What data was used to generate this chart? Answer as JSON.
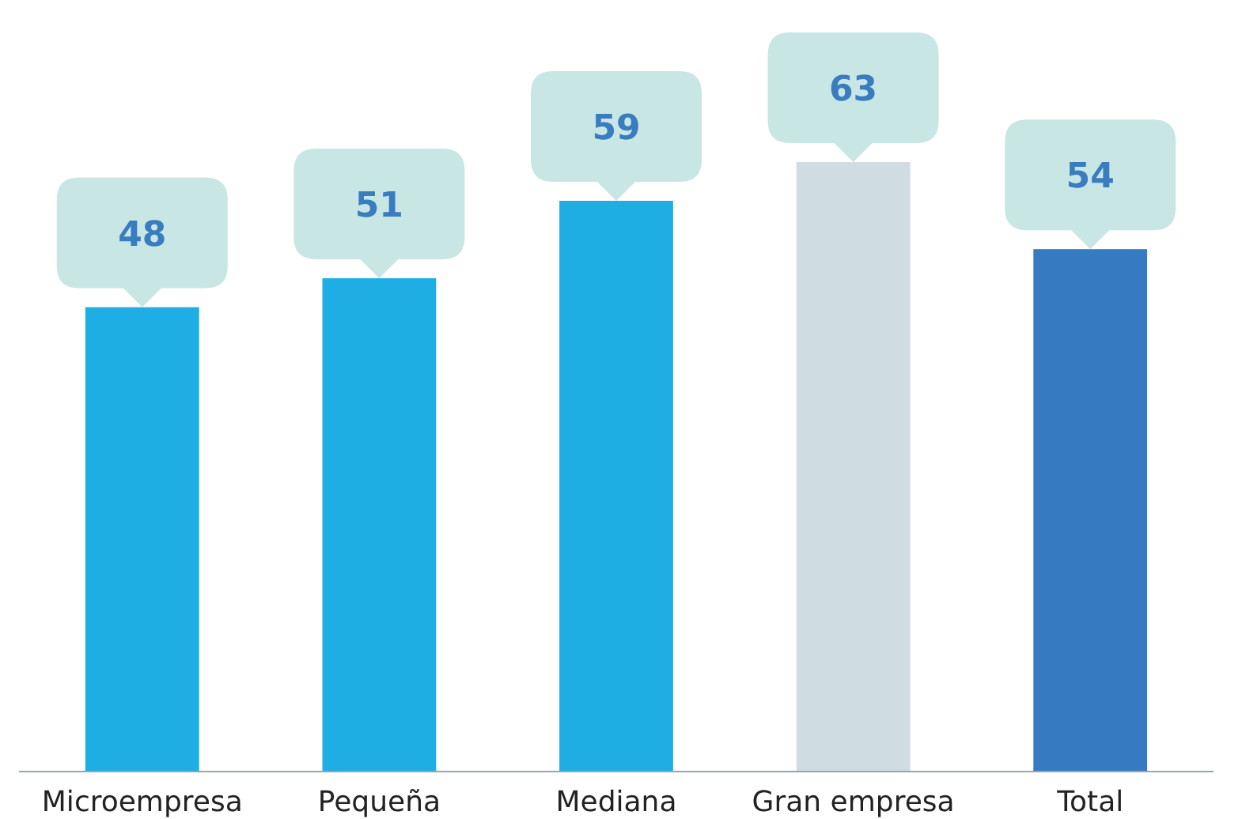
{
  "chart_data": {
    "type": "bar",
    "categories": [
      "Microempresa",
      "Pequeña",
      "Mediana",
      "Gran empresa",
      "Total"
    ],
    "values": [
      48,
      51,
      59,
      63,
      54
    ],
    "colors": [
      "#1eaee4",
      "#1eaee4",
      "#1eaee4",
      "#cfdce1",
      "#367bc1"
    ],
    "data_labels": true
  }
}
